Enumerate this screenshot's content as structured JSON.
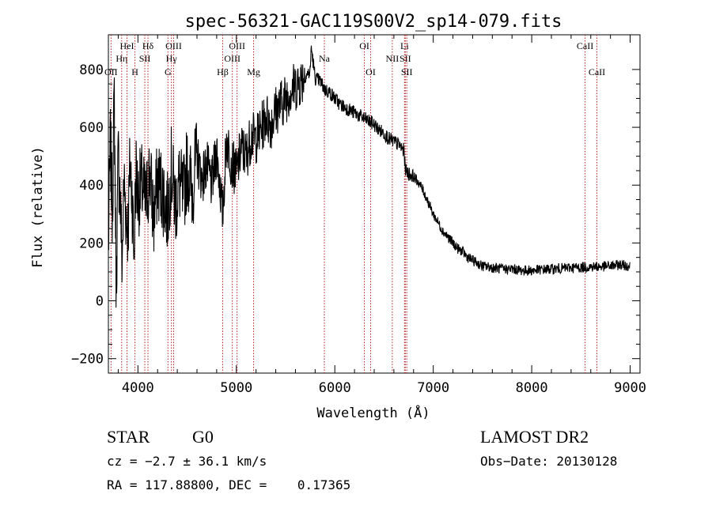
{
  "chart_data": {
    "type": "line",
    "title": "spec-56321-GAC119S00V2_sp14-079.fits",
    "xlabel": "Wavelength (Å)",
    "ylabel": "Flux (relative)",
    "xlim": [
      3700,
      9100
    ],
    "ylim": [
      -250,
      920
    ],
    "xticks": [
      4000,
      5000,
      6000,
      7000,
      8000,
      9000
    ],
    "yticks": [
      -200,
      0,
      200,
      400,
      600,
      800
    ],
    "xtick_labels": [
      "4000",
      "5000",
      "6000",
      "7000",
      "8000",
      "9000"
    ],
    "ytick_labels": [
      "−200",
      "0",
      "200",
      "400",
      "600",
      "800"
    ],
    "line_color": "#000000",
    "marker_color": "#b22222",
    "grid": false,
    "series": [
      {
        "x": [
          3700,
          3720,
          3740,
          3760,
          3780,
          3800,
          3820,
          3840,
          3860,
          3880,
          3900,
          3920,
          3940,
          3960,
          3980,
          4000,
          4040,
          4080,
          4120,
          4160,
          4200,
          4250,
          4300,
          4340,
          4380,
          4420,
          4460,
          4500,
          4550,
          4600,
          4650,
          4700,
          4750,
          4800,
          4861,
          4900,
          4950,
          5000,
          5050,
          5100,
          5150,
          5200,
          5250,
          5300,
          5350,
          5400,
          5450,
          5500,
          5550,
          5600,
          5650,
          5700,
          5750,
          5760,
          5800,
          5850,
          5900,
          5950,
          6000,
          6050,
          6100,
          6150,
          6200,
          6250,
          6300,
          6350,
          6400,
          6450,
          6500,
          6550,
          6600,
          6650,
          6700,
          6720,
          6750,
          6800,
          6850,
          6900,
          6950,
          7000,
          7050,
          7100,
          7150,
          7200,
          7250,
          7300,
          7350,
          7400,
          7450,
          7500,
          7600,
          7700,
          7800,
          7900,
          8000,
          8100,
          8200,
          8300,
          8400,
          8500,
          8600,
          8700,
          8800,
          8900,
          9000
        ],
        "y": [
          180,
          550,
          320,
          700,
          40,
          500,
          360,
          130,
          420,
          300,
          250,
          480,
          380,
          160,
          450,
          360,
          400,
          330,
          450,
          280,
          420,
          380,
          300,
          460,
          330,
          410,
          350,
          470,
          380,
          500,
          420,
          470,
          400,
          520,
          300,
          560,
          480,
          440,
          530,
          500,
          570,
          560,
          590,
          640,
          610,
          660,
          680,
          700,
          730,
          740,
          760,
          780,
          790,
          880,
          770,
          760,
          730,
          720,
          700,
          680,
          670,
          660,
          650,
          640,
          630,
          620,
          610,
          590,
          580,
          560,
          550,
          540,
          520,
          450,
          440,
          430,
          410,
          380,
          340,
          300,
          270,
          240,
          220,
          200,
          180,
          170,
          150,
          140,
          130,
          120,
          115,
          110,
          110,
          105,
          105,
          108,
          110,
          112,
          115,
          115,
          118,
          118,
          120,
          125,
          120
        ]
      }
    ],
    "line_markers": [
      {
        "wl": 3727,
        "label": "OII",
        "row": 3
      },
      {
        "wl": 3835,
        "label": "Hη",
        "row": 2
      },
      {
        "wl": 3889,
        "label": "HeI",
        "row": 1
      },
      {
        "wl": 3970,
        "label": "H",
        "row": 3
      },
      {
        "wl": 4070,
        "label": "SII",
        "row": 2
      },
      {
        "wl": 4102,
        "label": "Hδ",
        "row": 1
      },
      {
        "wl": 4305,
        "label": "G",
        "row": 3
      },
      {
        "wl": 4340,
        "label": "Hγ",
        "row": 2
      },
      {
        "wl": 4363,
        "label": "OIII",
        "row": 1
      },
      {
        "wl": 4861,
        "label": "Hβ",
        "row": 3
      },
      {
        "wl": 4959,
        "label": "OIII",
        "row": 2
      },
      {
        "wl": 5007,
        "label": "OIII",
        "row": 1
      },
      {
        "wl": 5175,
        "label": "Mg",
        "row": 3
      },
      {
        "wl": 5894,
        "label": "Na",
        "row": 2
      },
      {
        "wl": 6300,
        "label": "OI",
        "row": 1
      },
      {
        "wl": 6364,
        "label": "OI",
        "row": 3
      },
      {
        "wl": 6584,
        "label": "NII",
        "row": 2
      },
      {
        "wl": 6708,
        "label": "Li",
        "row": 1
      },
      {
        "wl": 6716,
        "label": "SII",
        "row": 2
      },
      {
        "wl": 6731,
        "label": "SII",
        "row": 3
      },
      {
        "wl": 8542,
        "label": "CaII",
        "row": 1
      },
      {
        "wl": 8662,
        "label": "CaII",
        "row": 3
      }
    ]
  },
  "info": {
    "object_class": "STAR",
    "subclass": "G0",
    "survey": "LAMOST DR2",
    "redshift": "cz = −2.7 ± 36.1 km/s",
    "obs_date": "Obs−Date: 20130128",
    "coords": "RA = 117.88800, DEC =    0.17365"
  }
}
